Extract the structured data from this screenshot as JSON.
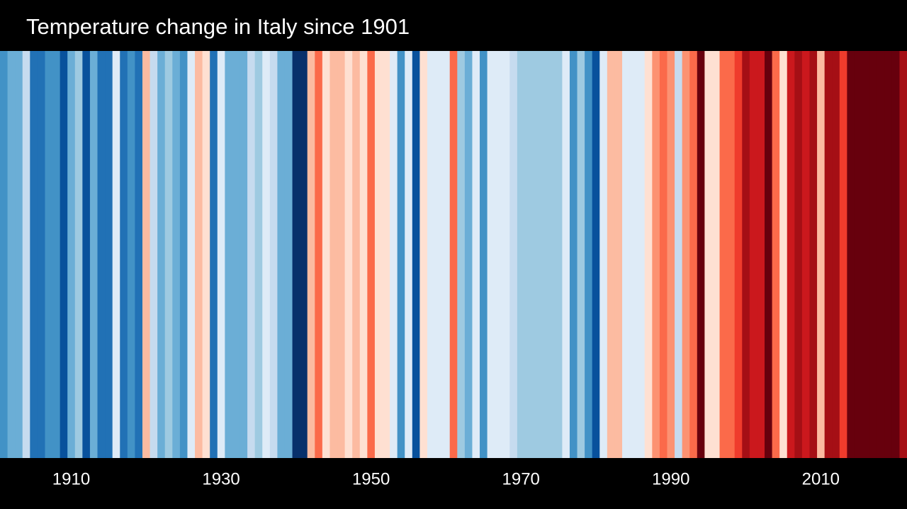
{
  "chart_data": {
    "type": "stripes",
    "title": "Temperature change in Italy since 1901",
    "x": [
      1901,
      1902,
      1903,
      1904,
      1905,
      1906,
      1907,
      1908,
      1909,
      1910,
      1911,
      1912,
      1913,
      1914,
      1915,
      1916,
      1917,
      1918,
      1919,
      1920,
      1921,
      1922,
      1923,
      1924,
      1925,
      1926,
      1927,
      1928,
      1929,
      1930,
      1931,
      1932,
      1933,
      1934,
      1935,
      1936,
      1937,
      1938,
      1939,
      1940,
      1941,
      1942,
      1943,
      1944,
      1945,
      1946,
      1947,
      1948,
      1949,
      1950,
      1951,
      1952,
      1953,
      1954,
      1955,
      1956,
      1957,
      1958,
      1959,
      1960,
      1961,
      1962,
      1963,
      1964,
      1965,
      1966,
      1967,
      1968,
      1969,
      1970,
      1971,
      1972,
      1973,
      1974,
      1975,
      1976,
      1977,
      1978,
      1979,
      1980,
      1981,
      1982,
      1983,
      1984,
      1985,
      1986,
      1987,
      1988,
      1989,
      1990,
      1991,
      1992,
      1993,
      1994,
      1995,
      1996,
      1997,
      1998,
      1999,
      2000,
      2001,
      2002,
      2003,
      2004,
      2005,
      2006,
      2007,
      2008,
      2009,
      2010,
      2011,
      2012,
      2013,
      2014,
      2015,
      2016,
      2017,
      2018,
      2019,
      2020,
      2021
    ],
    "values": [
      -0.9,
      -0.7,
      -0.7,
      -0.3,
      -1.1,
      -1.1,
      -0.9,
      -0.9,
      -1.3,
      -0.7,
      -0.5,
      -1.3,
      -0.7,
      -1.1,
      -1.1,
      -0.1,
      -1.1,
      -0.9,
      -1.1,
      0.3,
      -0.3,
      -0.7,
      -0.5,
      -0.7,
      -0.9,
      -0.1,
      0.3,
      0.1,
      -1.1,
      -0.1,
      -0.7,
      -0.7,
      -0.7,
      -0.3,
      -0.5,
      -0.1,
      -0.3,
      -0.7,
      -0.7,
      -1.5,
      -1.5,
      0.3,
      0.7,
      0.1,
      0.3,
      0.3,
      0.1,
      0.3,
      0.1,
      0.7,
      0.1,
      0.1,
      -0.1,
      -0.9,
      -0.1,
      -1.3,
      0.1,
      -0.1,
      -0.1,
      -0.1,
      0.7,
      -0.5,
      -0.7,
      -0.1,
      -0.9,
      -0.1,
      -0.1,
      -0.1,
      -0.3,
      -0.5,
      -0.5,
      -0.5,
      -0.5,
      -0.5,
      -0.5,
      -0.1,
      -0.9,
      -0.5,
      -0.9,
      -1.3,
      -0.1,
      0.3,
      0.3,
      -0.1,
      -0.1,
      -0.1,
      0.1,
      0.5,
      0.7,
      0.5,
      -0.3,
      0.5,
      0.7,
      1.5,
      0.1,
      0.1,
      0.7,
      0.7,
      0.9,
      1.3,
      1.1,
      1.1,
      1.5,
      0.7,
      0.1,
      1.1,
      1.3,
      1.1,
      1.3,
      0.3,
      1.3,
      1.3,
      0.9,
      1.5,
      1.5,
      1.5,
      1.5,
      1.5,
      1.5,
      1.5,
      1.3
    ],
    "palette": [
      "#08306b",
      "#08519c",
      "#2171b5",
      "#4292c6",
      "#6baed6",
      "#9ecae1",
      "#c6dbef",
      "#deebf7",
      "#fee0d2",
      "#fcbba1",
      "#fc9272",
      "#fb6a4a",
      "#ef3b2c",
      "#cb181d",
      "#a50f15",
      "#67000d"
    ],
    "vlim": [
      -1.6,
      1.6
    ],
    "xlim": [
      1900.5,
      2021.5
    ],
    "xticks": [
      1910,
      1930,
      1950,
      1970,
      1990,
      2010
    ]
  }
}
